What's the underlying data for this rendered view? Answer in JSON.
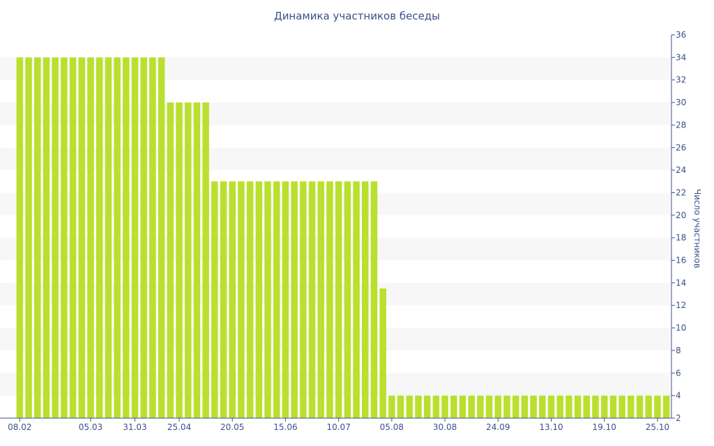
{
  "chart_data": {
    "type": "bar",
    "title": "Динамика участников беседы",
    "ylabel": "Число участников",
    "xlabel": "",
    "ylim": [
      2,
      36
    ],
    "yticks": [
      2,
      4,
      6,
      8,
      10,
      12,
      14,
      16,
      18,
      20,
      22,
      24,
      26,
      28,
      30,
      32,
      34,
      36
    ],
    "y_axis_side": "right",
    "grid": "alternating horizontal bands",
    "legend": "none",
    "bar_color": "#b9e02e",
    "band_color": "#f7f7f7",
    "text_color": "#3b4f8a",
    "values": [
      34,
      34,
      34,
      34,
      34,
      34,
      34,
      34,
      34,
      34,
      34,
      34,
      34,
      34,
      34,
      34,
      34,
      30,
      30,
      30,
      30,
      30,
      23,
      23,
      23,
      23,
      23,
      23,
      23,
      23,
      23,
      23,
      23,
      23,
      23,
      23,
      23,
      23,
      23,
      23,
      23,
      13.5,
      4,
      4,
      4,
      4,
      4,
      4,
      4,
      4,
      4,
      4,
      4,
      4,
      4,
      4,
      4,
      4,
      4,
      4,
      4,
      4,
      4,
      4,
      4,
      4,
      4,
      4,
      4,
      4,
      4,
      4,
      4,
      4
    ],
    "xtick_labels": [
      {
        "index": 0,
        "label": "08.02"
      },
      {
        "index": 8,
        "label": "05.03"
      },
      {
        "index": 13,
        "label": "31.03"
      },
      {
        "index": 18,
        "label": "25.04"
      },
      {
        "index": 24,
        "label": "20.05"
      },
      {
        "index": 30,
        "label": "15.06"
      },
      {
        "index": 36,
        "label": "10.07"
      },
      {
        "index": 42,
        "label": "05.08"
      },
      {
        "index": 48,
        "label": "30.08"
      },
      {
        "index": 54,
        "label": "24.09"
      },
      {
        "index": 60,
        "label": "13.10"
      },
      {
        "index": 66,
        "label": "19.10"
      },
      {
        "index": 72,
        "label": "25.10"
      }
    ]
  }
}
